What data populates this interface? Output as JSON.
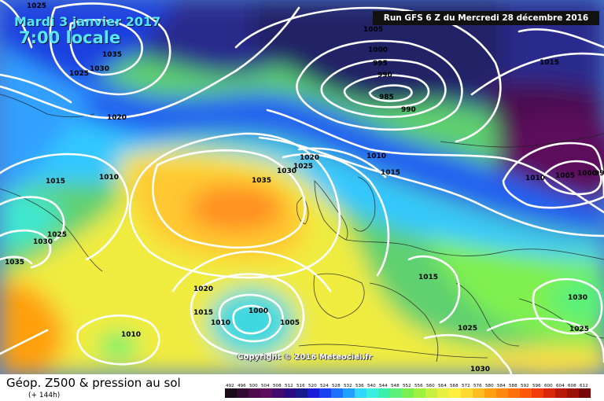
{
  "header": {
    "date": "Mardi 3 janvier 2017",
    "time": "7:00 locale",
    "run": "Run GFS 6 Z du Mercredi 28 décembre 2016"
  },
  "copyright": "Copyright © 2016 Meteociel.fr",
  "legend": {
    "title": "Géop. Z500 & pression au sol",
    "subtitle": "(+ 144h)",
    "scale_values": [
      "492",
      "496",
      "500",
      "504",
      "508",
      "512",
      "516",
      "520",
      "524",
      "528",
      "532",
      "536",
      "540",
      "544",
      "548",
      "552",
      "556",
      "560",
      "564",
      "568",
      "572",
      "576",
      "580",
      "584",
      "588",
      "592",
      "596",
      "600",
      "604",
      "608",
      "612"
    ],
    "scale_colors": [
      "#1a0a1a",
      "#330a33",
      "#4d0a4d",
      "#5b0f5b",
      "#400a6e",
      "#2a0a80",
      "#161a8c",
      "#1a1ad9",
      "#1a40f0",
      "#2070ff",
      "#20a0ff",
      "#30d8ff",
      "#3af0e0",
      "#3af0a8",
      "#5af07a",
      "#7af050",
      "#a0f040",
      "#c8f040",
      "#e8f040",
      "#fff040",
      "#ffd830",
      "#ffbe20",
      "#ffa010",
      "#ff8810",
      "#ff7008",
      "#ff5808",
      "#f03c08",
      "#d82808",
      "#b81808",
      "#981008",
      "#780808"
    ]
  },
  "isobars": [
    {
      "label": "1025",
      "label_visible": "1025"
    },
    {
      "label": "1035"
    },
    {
      "label": "1030"
    },
    {
      "label": "1025"
    },
    {
      "label": "1020"
    },
    {
      "label": "1005"
    },
    {
      "label": "1000"
    },
    {
      "label": "995"
    },
    {
      "label": "990"
    },
    {
      "label": "985"
    },
    {
      "label": "990"
    },
    {
      "label": "1015"
    },
    {
      "label": "1010"
    },
    {
      "label": "1005"
    },
    {
      "label": "1000"
    },
    {
      "label": "995"
    },
    {
      "label": "1010"
    },
    {
      "label": "1015"
    },
    {
      "label": "1020"
    },
    {
      "label": "1025"
    },
    {
      "label": "1030"
    },
    {
      "label": "1035"
    },
    {
      "label": "1020"
    },
    {
      "label": "1025"
    },
    {
      "label": "1030"
    },
    {
      "label": "1010"
    },
    {
      "label": "1015"
    },
    {
      "label": "1010"
    },
    {
      "label": "1015"
    },
    {
      "label": "1025"
    },
    {
      "label": "1030"
    },
    {
      "label": "1035"
    },
    {
      "label": "1020"
    },
    {
      "label": "1015"
    },
    {
      "label": "1010"
    },
    {
      "label": "1000"
    },
    {
      "label": "1005"
    },
    {
      "label": "1010"
    },
    {
      "label": "1015"
    },
    {
      "label": "1030"
    },
    {
      "label": "1025"
    },
    {
      "label": "1030"
    }
  ]
}
